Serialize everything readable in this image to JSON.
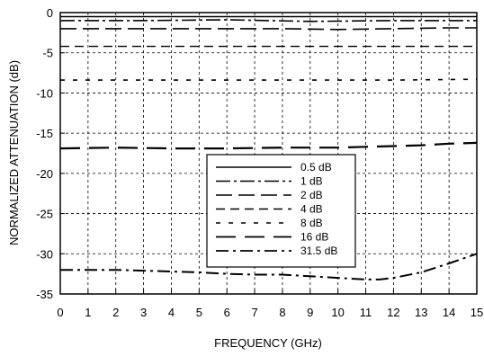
{
  "chart_data": {
    "type": "line",
    "title": "",
    "xlabel": "FREQUENCY (GHz)",
    "ylabel": "NORMALIZED ATTENUATION (dB)",
    "xlim": [
      0,
      15
    ],
    "ylim": [
      -35,
      0
    ],
    "x_ticks": [
      "0",
      "1",
      "2",
      "3",
      "4",
      "5",
      "6",
      "7",
      "8",
      "9",
      "10",
      "11",
      "12",
      "13",
      "14",
      "15"
    ],
    "y_ticks": [
      "0",
      "-5",
      "-10",
      "-15",
      "-20",
      "-25",
      "-30",
      "-35"
    ],
    "grid": true,
    "legend_position": "center-right",
    "series": [
      {
        "name": "0.5 dB",
        "x": [
          0,
          3,
          6,
          9,
          12,
          15
        ],
        "y": [
          -0.5,
          -0.5,
          -0.5,
          -0.5,
          -0.5,
          -0.5
        ],
        "dash": "none",
        "width": 1.4
      },
      {
        "name": "1 dB",
        "x": [
          0,
          3,
          6,
          9,
          12,
          15
        ],
        "y": [
          -1.0,
          -1.0,
          -0.9,
          -1.1,
          -1.0,
          -1.0
        ],
        "dash": "16,4,3,4",
        "width": 1.6
      },
      {
        "name": "2 dB",
        "x": [
          0,
          2,
          4,
          6,
          8,
          10,
          12,
          14,
          15
        ],
        "y": [
          -2.0,
          -2.0,
          -2.0,
          -2.0,
          -2.0,
          -2.1,
          -2.0,
          -1.9,
          -1.9
        ],
        "dash": "18,7",
        "width": 1.6
      },
      {
        "name": "4 dB",
        "x": [
          0,
          3,
          6,
          9,
          12,
          15
        ],
        "y": [
          -4.2,
          -4.2,
          -4.2,
          -4.2,
          -4.2,
          -4.2
        ],
        "dash": "10,6",
        "width": 1.4
      },
      {
        "name": "8 dB",
        "x": [
          0,
          3,
          6,
          9,
          12,
          15
        ],
        "y": [
          -8.4,
          -8.4,
          -8.4,
          -8.4,
          -8.4,
          -8.3
        ],
        "dash": "5,9",
        "width": 1.6
      },
      {
        "name": "16 dB",
        "x": [
          0,
          2,
          4,
          6,
          8,
          10,
          11,
          12,
          13,
          14,
          15
        ],
        "y": [
          -16.9,
          -16.8,
          -16.9,
          -16.9,
          -16.8,
          -16.8,
          -16.7,
          -16.6,
          -16.5,
          -16.3,
          -16.2
        ],
        "dash": "22,10",
        "width": 2.2
      },
      {
        "name": "31.5 dB",
        "x": [
          0,
          1,
          2,
          3,
          4,
          5,
          6,
          7,
          8,
          9,
          10,
          11,
          11.5,
          12,
          13,
          14,
          15
        ],
        "y": [
          -32.0,
          -32.0,
          -32.0,
          -32.1,
          -32.2,
          -32.3,
          -32.5,
          -32.6,
          -32.6,
          -32.8,
          -33.0,
          -33.2,
          -33.2,
          -33.0,
          -32.3,
          -31.2,
          -30.0
        ],
        "dash": "14,5,3,5",
        "width": 2.0
      }
    ]
  }
}
